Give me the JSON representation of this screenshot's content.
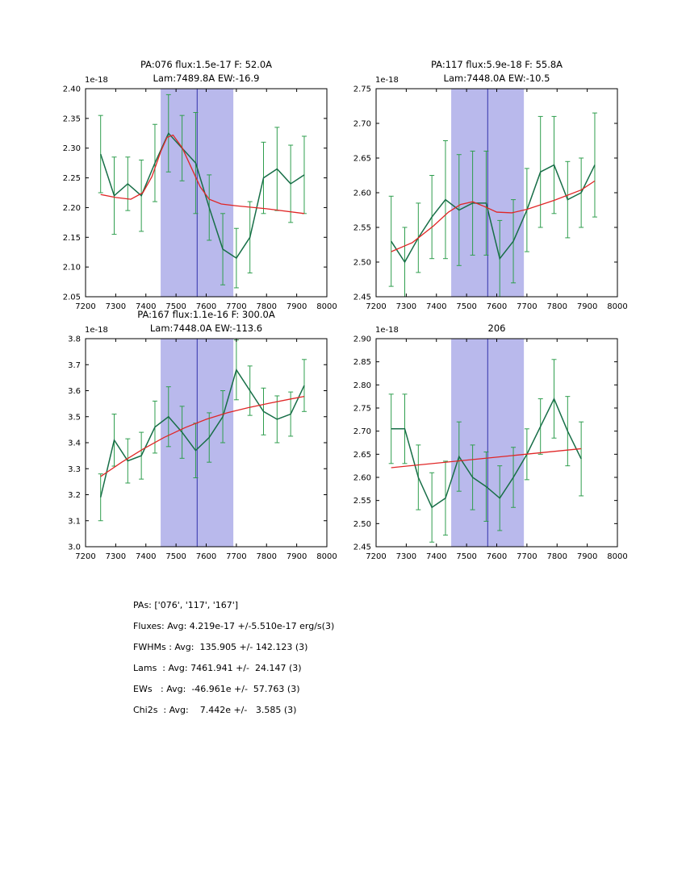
{
  "colors": {
    "data": "#176e47",
    "errorbar": "#2f9e4e",
    "fit": "#e02626",
    "band": "#b9b9ec",
    "vline": "#3333aa",
    "axis": "#000000",
    "background": "#ffffff"
  },
  "chart_data": [
    {
      "type": "line",
      "title1": "PA:076 flux:1.5e-17 F: 52.0A",
      "title2": "Lam:7489.8A EW:-16.9",
      "offset_label": "1e-18",
      "xlim": [
        7200,
        8000
      ],
      "ylim": [
        2.05,
        2.4
      ],
      "xtick_vals": [
        7200,
        7300,
        7400,
        7500,
        7600,
        7700,
        7800,
        7900,
        8000
      ],
      "xtick_labels": [
        "7200",
        "7300",
        "7400",
        "7500",
        "7600",
        "7700",
        "7800",
        "7900",
        "8000"
      ],
      "ytick_vals": [
        2.05,
        2.1,
        2.15,
        2.2,
        2.25,
        2.3,
        2.35,
        2.4
      ],
      "ytick_labels": [
        "2.05",
        "2.10",
        "2.15",
        "2.20",
        "2.25",
        "2.30",
        "2.35",
        "2.40"
      ],
      "band": [
        7449,
        7690
      ],
      "vline": 7570,
      "series": [
        {
          "name": "spectrum",
          "x": [
            7250,
            7295,
            7340,
            7385,
            7430,
            7475,
            7520,
            7565,
            7610,
            7655,
            7700,
            7745,
            7790,
            7835,
            7880,
            7925
          ],
          "y": [
            2.29,
            2.22,
            2.24,
            2.22,
            2.275,
            2.325,
            2.3,
            2.275,
            2.2,
            2.13,
            2.115,
            2.15,
            2.25,
            2.265,
            2.24,
            2.255
          ],
          "yerr": [
            0.065,
            0.065,
            0.045,
            0.06,
            0.065,
            0.065,
            0.055,
            0.085,
            0.055,
            0.06,
            0.05,
            0.06,
            0.06,
            0.07,
            0.065,
            0.065
          ]
        },
        {
          "name": "fit",
          "x": [
            7250,
            7300,
            7350,
            7390,
            7420,
            7450,
            7470,
            7490,
            7520,
            7550,
            7580,
            7610,
            7650,
            7700,
            7800,
            7925
          ],
          "y": [
            2.222,
            2.217,
            2.214,
            2.225,
            2.252,
            2.295,
            2.318,
            2.322,
            2.301,
            2.268,
            2.235,
            2.214,
            2.206,
            2.203,
            2.198,
            2.19
          ]
        }
      ]
    },
    {
      "type": "line",
      "title1": "PA:117 flux:5.9e-18 F: 55.8A",
      "title2": "Lam:7448.0A EW:-10.5",
      "offset_label": "1e-18",
      "xlim": [
        7200,
        8000
      ],
      "ylim": [
        2.45,
        2.75
      ],
      "xtick_vals": [
        7200,
        7300,
        7400,
        7500,
        7600,
        7700,
        7800,
        7900,
        8000
      ],
      "xtick_labels": [
        "7200",
        "7300",
        "7400",
        "7500",
        "7600",
        "7700",
        "7800",
        "7900",
        "8000"
      ],
      "ytick_vals": [
        2.45,
        2.5,
        2.55,
        2.6,
        2.65,
        2.7,
        2.75
      ],
      "ytick_labels": [
        "2.45",
        "2.50",
        "2.55",
        "2.60",
        "2.65",
        "2.70",
        "2.75"
      ],
      "band": [
        7449,
        7690
      ],
      "vline": 7570,
      "series": [
        {
          "name": "spectrum",
          "x": [
            7250,
            7295,
            7340,
            7385,
            7430,
            7475,
            7520,
            7565,
            7610,
            7655,
            7700,
            7745,
            7790,
            7835,
            7880,
            7925
          ],
          "y": [
            2.53,
            2.5,
            2.535,
            2.565,
            2.59,
            2.575,
            2.585,
            2.585,
            2.505,
            2.53,
            2.575,
            2.63,
            2.64,
            2.59,
            2.6,
            2.64
          ],
          "yerr": [
            0.065,
            0.05,
            0.05,
            0.06,
            0.085,
            0.08,
            0.075,
            0.075,
            0.055,
            0.06,
            0.06,
            0.08,
            0.07,
            0.055,
            0.05,
            0.075
          ]
        },
        {
          "name": "fit",
          "x": [
            7250,
            7320,
            7390,
            7440,
            7480,
            7520,
            7560,
            7600,
            7650,
            7700,
            7790,
            7880,
            7925
          ],
          "y": [
            2.515,
            2.528,
            2.552,
            2.572,
            2.583,
            2.587,
            2.58,
            2.572,
            2.571,
            2.576,
            2.589,
            2.604,
            2.617
          ]
        }
      ]
    },
    {
      "type": "line",
      "title1": "PA:167 flux:1.1e-16 F: 300.0A",
      "title2": "Lam:7448.0A EW:-113.6",
      "offset_label": "1e-18",
      "xlim": [
        7200,
        8000
      ],
      "ylim": [
        3.0,
        3.8
      ],
      "xtick_vals": [
        7200,
        7300,
        7400,
        7500,
        7600,
        7700,
        7800,
        7900,
        8000
      ],
      "xtick_labels": [
        "7200",
        "7300",
        "7400",
        "7500",
        "7600",
        "7700",
        "7800",
        "7900",
        "8000"
      ],
      "ytick_vals": [
        3.0,
        3.1,
        3.2,
        3.3,
        3.4,
        3.5,
        3.6,
        3.7,
        3.8
      ],
      "ytick_labels": [
        "3.0",
        "3.1",
        "3.2",
        "3.3",
        "3.4",
        "3.5",
        "3.6",
        "3.7",
        "3.8"
      ],
      "band": [
        7449,
        7690
      ],
      "vline": 7570,
      "series": [
        {
          "name": "spectrum",
          "x": [
            7250,
            7295,
            7340,
            7385,
            7430,
            7475,
            7520,
            7565,
            7610,
            7655,
            7700,
            7745,
            7790,
            7835,
            7880,
            7925
          ],
          "y": [
            3.19,
            3.41,
            3.33,
            3.35,
            3.46,
            3.5,
            3.44,
            3.37,
            3.42,
            3.5,
            3.68,
            3.6,
            3.52,
            3.49,
            3.51,
            3.62
          ],
          "yerr": [
            0.09,
            0.1,
            0.085,
            0.09,
            0.1,
            0.115,
            0.1,
            0.105,
            0.095,
            0.1,
            0.115,
            0.095,
            0.09,
            0.09,
            0.085,
            0.1
          ]
        },
        {
          "name": "fit",
          "x": [
            7250,
            7320,
            7390,
            7460,
            7530,
            7600,
            7670,
            7740,
            7810,
            7880,
            7925
          ],
          "y": [
            3.27,
            3.325,
            3.375,
            3.42,
            3.458,
            3.49,
            3.515,
            3.535,
            3.552,
            3.568,
            3.578
          ]
        }
      ]
    },
    {
      "type": "line",
      "title1": "206",
      "title2": "",
      "offset_label": "1e-18",
      "xlim": [
        7200,
        8000
      ],
      "ylim": [
        2.45,
        2.9
      ],
      "xtick_vals": [
        7200,
        7300,
        7400,
        7500,
        7600,
        7700,
        7800,
        7900,
        8000
      ],
      "xtick_labels": [
        "7200",
        "7300",
        "7400",
        "7500",
        "7600",
        "7700",
        "7800",
        "7900",
        "8000"
      ],
      "ytick_vals": [
        2.45,
        2.5,
        2.55,
        2.6,
        2.65,
        2.7,
        2.75,
        2.8,
        2.85,
        2.9
      ],
      "ytick_labels": [
        "2.45",
        "2.50",
        "2.55",
        "2.60",
        "2.65",
        "2.70",
        "2.75",
        "2.80",
        "2.85",
        "2.90"
      ],
      "band": [
        7449,
        7690
      ],
      "vline": 7570,
      "series": [
        {
          "name": "spectrum",
          "x": [
            7250,
            7295,
            7340,
            7385,
            7430,
            7475,
            7520,
            7565,
            7610,
            7655,
            7700,
            7745,
            7790,
            7835,
            7880
          ],
          "y": [
            2.705,
            2.705,
            2.6,
            2.535,
            2.555,
            2.645,
            2.6,
            2.58,
            2.555,
            2.6,
            2.65,
            2.71,
            2.77,
            2.7,
            2.64
          ],
          "yerr": [
            0.075,
            0.075,
            0.07,
            0.075,
            0.08,
            0.075,
            0.07,
            0.075,
            0.07,
            0.065,
            0.055,
            0.06,
            0.085,
            0.075,
            0.08
          ]
        },
        {
          "name": "fit",
          "x": [
            7250,
            7880
          ],
          "y": [
            2.621,
            2.662
          ]
        }
      ]
    }
  ],
  "summary": {
    "lines": [
      "PAs: ['076', '117', '167']",
      "Fluxes: Avg: 4.219e-17 +/-5.510e-17 erg/s(3)",
      "FWHMs : Avg:  135.905 +/- 142.123 (3)",
      "Lams  : Avg: 7461.941 +/-  24.147 (3)",
      "EWs   : Avg:  -46.961e +/-  57.763 (3)",
      "Chi2s  : Avg:    7.442e +/-   3.585 (3)"
    ]
  }
}
